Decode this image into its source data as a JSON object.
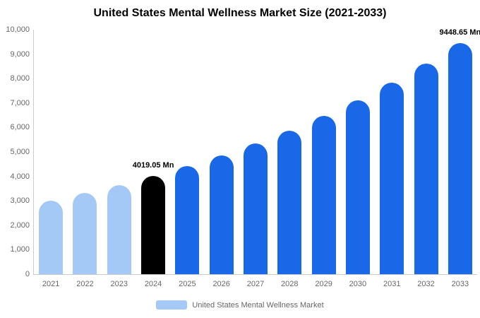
{
  "title": "United States Mental Wellness Market Size (2021-2033)",
  "colors": {
    "light_blue": "#a5c9f7",
    "blue": "#1868e8",
    "black": "#000000",
    "axis_line": "#cccccc",
    "tick_text": "#666666"
  },
  "legend": {
    "label": "United States Mental Wellness Market"
  },
  "chart_data": {
    "type": "bar",
    "title": "United States Mental Wellness Market Size (2021-2033)",
    "unit": "Mn",
    "ylim": [
      0,
      10000
    ],
    "y_tick_step": 1000,
    "y_tick_labels": [
      "0",
      "1,000",
      "2,000",
      "3,000",
      "4,000",
      "5,000",
      "6,000",
      "7,000",
      "8,000",
      "9,000",
      "10,000"
    ],
    "categories": [
      "2021",
      "2022",
      "2023",
      "2024",
      "2025",
      "2026",
      "2027",
      "2028",
      "2029",
      "2030",
      "2031",
      "2032",
      "2033"
    ],
    "values": [
      3020,
      3320,
      3650,
      4019.05,
      4420,
      4860,
      5350,
      5880,
      6470,
      7120,
      7830,
      8610,
      9448.65
    ],
    "bar_color_keys": [
      "light_blue",
      "light_blue",
      "light_blue",
      "black",
      "blue",
      "blue",
      "blue",
      "blue",
      "blue",
      "blue",
      "blue",
      "blue",
      "blue"
    ],
    "annotations": [
      {
        "category": "2024",
        "text": "4019.05 Mn"
      },
      {
        "category": "2033",
        "text": "9448.65 Mn"
      }
    ],
    "legend_entries": [
      "United States Mental Wellness Market"
    ],
    "grid": false,
    "legend_position": "bottom"
  }
}
